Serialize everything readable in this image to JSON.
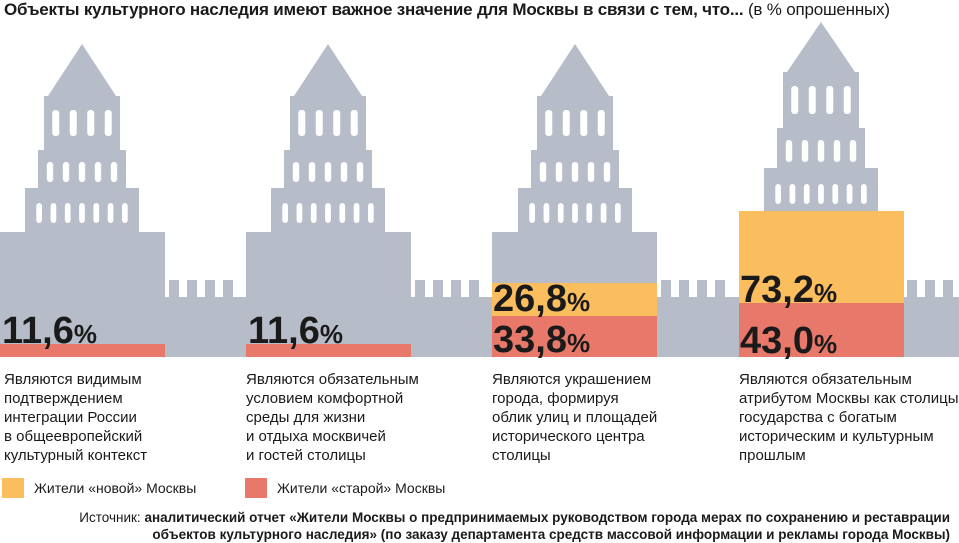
{
  "title": {
    "main": "Объекты культурного наследия имеют важное значение для Москвы в связи с тем, что...",
    "unit": "(в % опрошенных)"
  },
  "colors": {
    "tower": "#b6bcc8",
    "new_residents": "#fbbe5e",
    "old_residents": "#e8786a"
  },
  "chart_data": {
    "type": "bar",
    "categories": [
      "Являются видимым подтверждением интеграции России в общеевропейский культурный контекст",
      "Являются обязательным условием комфортной среды для жизни и отдыха москвичей и гостей столицы",
      "Являются украшением города, формируя облик улиц и площадей исторического центра столицы",
      "Являются обязательным атрибутом Москвы как столицы государства с богатым историческим и культурным прошлым"
    ],
    "series": [
      {
        "name": "Жители «новой» Москвы",
        "values": [
          11.6,
          11.6,
          26.8,
          73.2
        ]
      },
      {
        "name": "Жители «старой» Москвы",
        "values": [
          11.6,
          11.6,
          33.8,
          43.0
        ]
      }
    ],
    "value_labels": [
      [
        "11,6",
        "11,6"
      ],
      [
        "11,6",
        "11,6"
      ],
      [
        "26,8",
        "33,8"
      ],
      [
        "73,2",
        "43,0"
      ]
    ],
    "percent_sign": "%",
    "unit": "%",
    "legend": "bottom-left"
  },
  "captions": [
    [
      "Являются видимым",
      "подтверждением",
      "интеграции России",
      "в общеевропейский",
      "культурный контекст"
    ],
    [
      "Являются обязательным",
      "условием комфортной",
      "среды для жизни",
      "и отдыха москвичей",
      "и гостей столицы"
    ],
    [
      "Являются украшением",
      "города, формируя",
      "облик улиц и площадей",
      "исторического центра",
      "столицы"
    ],
    [
      "Являются обязательным",
      "атрибутом Москвы как столицы",
      "государства с богатым",
      "историческим и культурным",
      "прошлым"
    ]
  ],
  "legend": {
    "new": "Жители «новой» Москвы",
    "old": "Жители «старой» Москвы"
  },
  "source": {
    "prefix": "Источник:",
    "line1": "аналитический отчет «Жители Москвы о предпринимаемых руководством города мерах по сохранению и реставрации",
    "line2": "объектов культурного наследия» (по заказу департамента средств массовой информации и рекламы города Москвы)"
  }
}
